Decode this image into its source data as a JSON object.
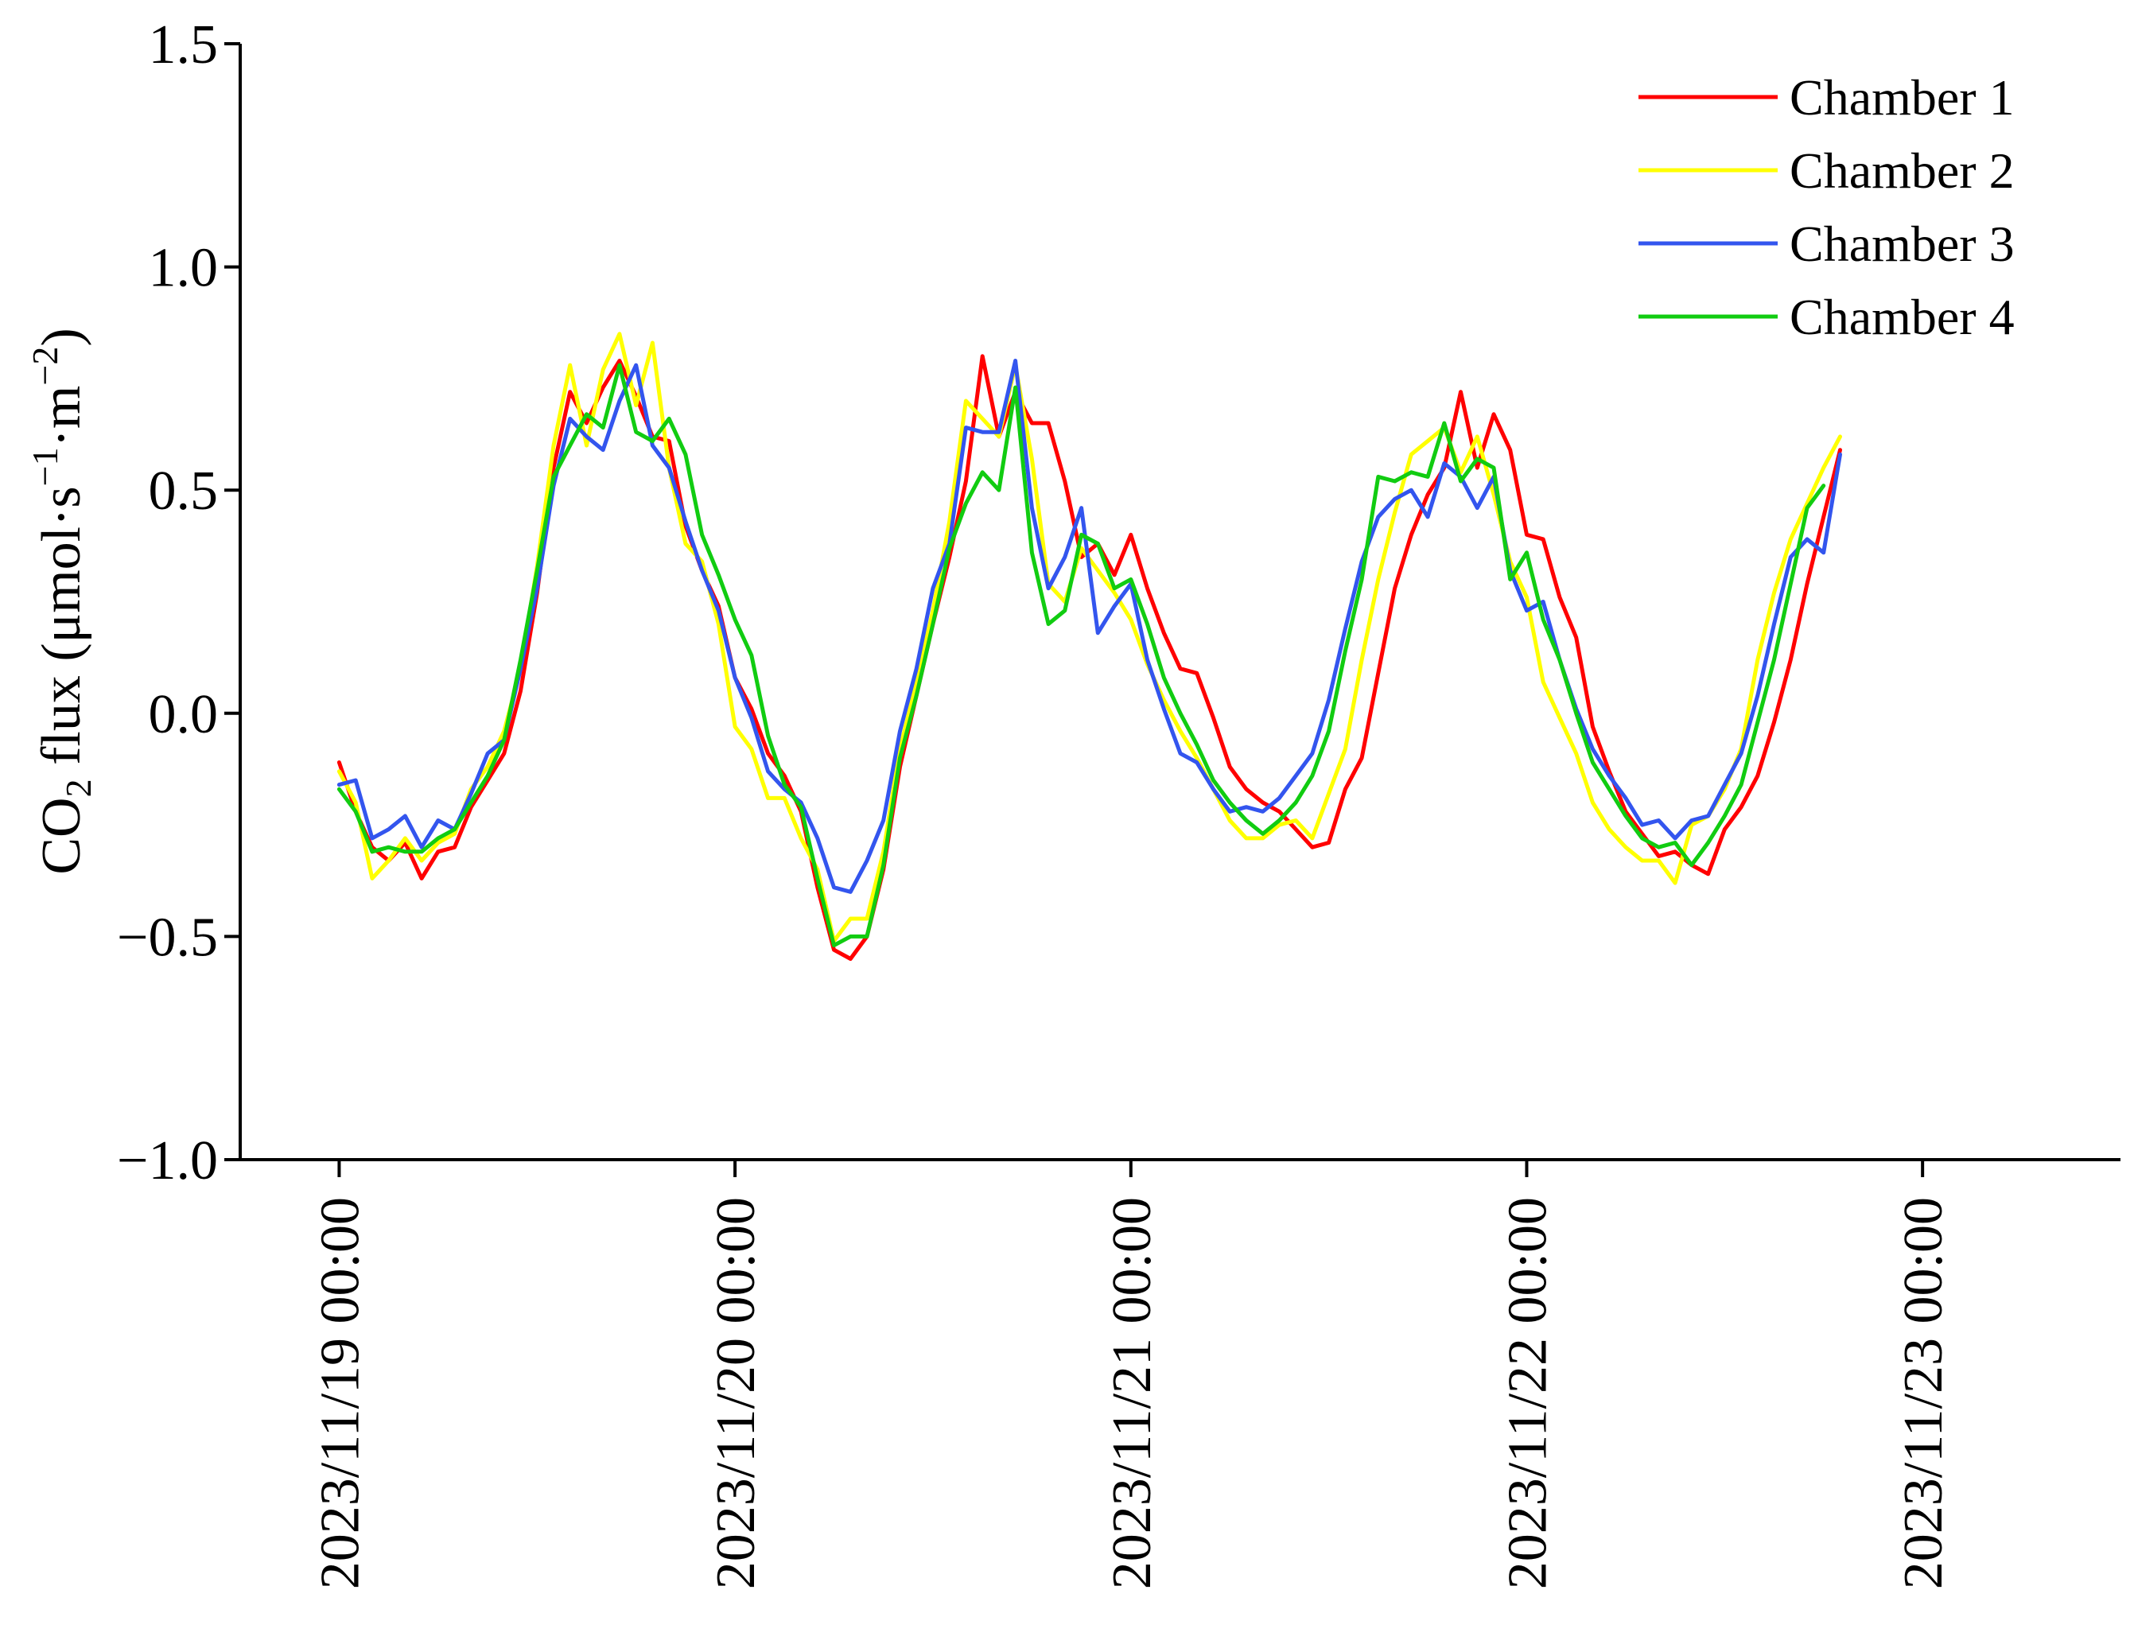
{
  "chart_data": {
    "type": "line",
    "ylabel": {
      "main": "CO",
      "sub": "2",
      "rest": " flux (μmol·s",
      "sup1": "−1",
      "mid": "·m",
      "sup2": "−2",
      "end": ")"
    },
    "xlabel": "",
    "xlim": [
      "2023/11/18 18:00",
      "2023/11/23 12:00"
    ],
    "ylim": [
      -1.0,
      1.5
    ],
    "x_ticks": [
      "2023/11/19 00:00",
      "2023/11/20 00:00",
      "2023/11/21 00:00",
      "2023/11/22 00:00",
      "2023/11/23 00:00"
    ],
    "y_ticks": [
      "−1.0",
      "−0.5",
      "0.0",
      "0.5",
      "1.0",
      "1.5"
    ],
    "y_tick_values": [
      -1.0,
      -0.5,
      0.0,
      0.5,
      1.0,
      1.5
    ],
    "x_start": "2023/11/19 00:00",
    "x_step_hours": 1,
    "legend_position": "top-right",
    "grid": false,
    "series": [
      {
        "name": "Chamber 1",
        "color": "#ff0000",
        "values": [
          -0.11,
          -0.22,
          -0.3,
          -0.33,
          -0.29,
          -0.37,
          -0.31,
          -0.3,
          -0.21,
          -0.15,
          -0.09,
          0.05,
          0.27,
          0.55,
          0.72,
          0.65,
          0.73,
          0.79,
          0.71,
          0.62,
          0.61,
          0.42,
          0.32,
          0.24,
          0.08,
          0.01,
          -0.09,
          -0.14,
          -0.22,
          -0.39,
          -0.53,
          -0.55,
          -0.5,
          -0.35,
          -0.12,
          0.04,
          0.2,
          0.35,
          0.52,
          0.8,
          0.62,
          0.72,
          0.65,
          0.65,
          0.52,
          0.35,
          0.38,
          0.31,
          0.4,
          0.28,
          0.18,
          0.1,
          0.09,
          -0.01,
          -0.12,
          -0.17,
          -0.2,
          -0.22,
          -0.26,
          -0.3,
          -0.29,
          -0.17,
          -0.1,
          0.09,
          0.28,
          0.4,
          0.49,
          0.55,
          0.72,
          0.55,
          0.67,
          0.59,
          0.4,
          0.39,
          0.26,
          0.17,
          -0.03,
          -0.13,
          -0.22,
          -0.27,
          -0.32,
          -0.31,
          -0.34,
          -0.36,
          -0.26,
          -0.21,
          -0.14,
          -0.02,
          0.12,
          0.29,
          0.44,
          0.59
        ]
      },
      {
        "name": "Chamber 2",
        "color": "#ffff00",
        "values": [
          -0.13,
          -0.2,
          -0.37,
          -0.33,
          -0.28,
          -0.33,
          -0.29,
          -0.27,
          -0.17,
          -0.12,
          -0.04,
          0.1,
          0.33,
          0.6,
          0.78,
          0.6,
          0.77,
          0.85,
          0.69,
          0.83,
          0.55,
          0.38,
          0.34,
          0.2,
          -0.03,
          -0.08,
          -0.19,
          -0.19,
          -0.28,
          -0.35,
          -0.51,
          -0.46,
          -0.46,
          -0.31,
          -0.08,
          0.07,
          0.23,
          0.43,
          0.7,
          0.66,
          0.62,
          0.78,
          0.57,
          0.29,
          0.25,
          0.37,
          0.32,
          0.27,
          0.21,
          0.11,
          0.03,
          -0.04,
          -0.1,
          -0.17,
          -0.24,
          -0.28,
          -0.28,
          -0.25,
          -0.24,
          -0.28,
          -0.18,
          -0.08,
          0.12,
          0.3,
          0.45,
          0.58,
          0.61,
          0.64,
          0.54,
          0.62,
          0.49,
          0.34,
          0.26,
          0.07,
          -0.01,
          -0.09,
          -0.2,
          -0.26,
          -0.3,
          -0.33,
          -0.33,
          -0.38,
          -0.25,
          -0.23,
          -0.17,
          -0.08,
          0.12,
          0.27,
          0.39,
          0.47,
          0.55,
          0.62
        ]
      },
      {
        "name": "Chamber 3",
        "color": "#3355ee",
        "values": [
          -0.16,
          -0.15,
          -0.28,
          -0.26,
          -0.23,
          -0.3,
          -0.24,
          -0.26,
          -0.18,
          -0.09,
          -0.06,
          0.1,
          0.28,
          0.51,
          0.66,
          0.62,
          0.59,
          0.7,
          0.78,
          0.6,
          0.55,
          0.43,
          0.32,
          0.23,
          0.08,
          -0.01,
          -0.13,
          -0.17,
          -0.2,
          -0.28,
          -0.39,
          -0.4,
          -0.33,
          -0.24,
          -0.04,
          0.1,
          0.28,
          0.38,
          0.64,
          0.63,
          0.63,
          0.79,
          0.46,
          0.28,
          0.35,
          0.46,
          0.18,
          0.24,
          0.29,
          0.12,
          0.01,
          -0.09,
          -0.11,
          -0.17,
          -0.22,
          -0.21,
          -0.22,
          -0.19,
          -0.14,
          -0.09,
          0.03,
          0.19,
          0.34,
          0.44,
          0.48,
          0.5,
          0.44,
          0.56,
          0.53,
          0.46,
          0.53,
          0.32,
          0.23,
          0.25,
          0.12,
          0.01,
          -0.08,
          -0.14,
          -0.19,
          -0.25,
          -0.24,
          -0.28,
          -0.24,
          -0.23,
          -0.16,
          -0.09,
          0.04,
          0.2,
          0.35,
          0.39,
          0.36,
          0.58
        ]
      },
      {
        "name": "Chamber 4",
        "color": "#11cc11",
        "values": [
          -0.17,
          -0.22,
          -0.31,
          -0.3,
          -0.31,
          -0.31,
          -0.28,
          -0.26,
          -0.2,
          -0.14,
          -0.06,
          0.12,
          0.32,
          0.53,
          0.6,
          0.67,
          0.64,
          0.78,
          0.63,
          0.61,
          0.66,
          0.58,
          0.4,
          0.31,
          0.21,
          0.13,
          -0.05,
          -0.16,
          -0.21,
          -0.37,
          -0.52,
          -0.5,
          -0.5,
          -0.34,
          -0.1,
          0.04,
          0.2,
          0.37,
          0.47,
          0.54,
          0.5,
          0.73,
          0.36,
          0.2,
          0.23,
          0.4,
          0.38,
          0.28,
          0.3,
          0.2,
          0.08,
          0.0,
          -0.07,
          -0.15,
          -0.2,
          -0.24,
          -0.27,
          -0.24,
          -0.2,
          -0.14,
          -0.04,
          0.14,
          0.3,
          0.53,
          0.52,
          0.54,
          0.53,
          0.65,
          0.52,
          0.57,
          0.55,
          0.3,
          0.36,
          0.21,
          0.12,
          0.0,
          -0.11,
          -0.17,
          -0.23,
          -0.28,
          -0.3,
          -0.29,
          -0.34,
          -0.29,
          -0.23,
          -0.16,
          -0.02,
          0.12,
          0.29,
          0.46,
          0.51
        ]
      }
    ]
  }
}
